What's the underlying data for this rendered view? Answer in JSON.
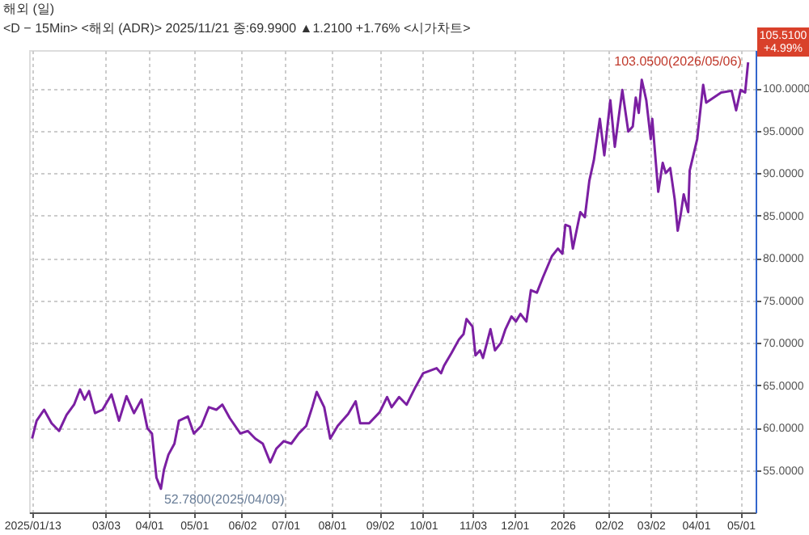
{
  "chart_data": {
    "type": "line",
    "title": "해외 (일)",
    "subtitle": "<D − 15Min> <해외 (ADR)> 2025/11/21 종:69.9900 ▲1.2100 +1.76% <시가차트>",
    "x": [
      "2025-01-13",
      "2025-01-16",
      "2025-01-21",
      "2025-01-26",
      "2025-01-31",
      "2025-02-05",
      "2025-02-10",
      "2025-02-14",
      "2025-02-17",
      "2025-02-20",
      "2025-02-24",
      "2025-03-01",
      "2025-03-07",
      "2025-03-12",
      "2025-03-17",
      "2025-03-22",
      "2025-03-27",
      "2025-03-31",
      "2025-04-03",
      "2025-04-06",
      "2025-04-09",
      "2025-04-11",
      "2025-04-14",
      "2025-04-18",
      "2025-04-21",
      "2025-04-27",
      "2025-05-01",
      "2025-05-06",
      "2025-05-11",
      "2025-05-16",
      "2025-05-20",
      "2025-05-25",
      "2025-06-01",
      "2025-06-06",
      "2025-06-11",
      "2025-06-16",
      "2025-06-21",
      "2025-06-25",
      "2025-06-30",
      "2025-07-05",
      "2025-07-10",
      "2025-07-15",
      "2025-07-19",
      "2025-07-22",
      "2025-07-27",
      "2025-07-31",
      "2025-08-05",
      "2025-08-12",
      "2025-08-17",
      "2025-08-20",
      "2025-08-26",
      "2025-09-02",
      "2025-09-07",
      "2025-09-10",
      "2025-09-15",
      "2025-09-20",
      "2025-09-26",
      "2025-10-01",
      "2025-10-10",
      "2025-10-13",
      "2025-10-15",
      "2025-10-20",
      "2025-10-25",
      "2025-10-28",
      "2025-10-30",
      "2025-11-03",
      "2025-11-05",
      "2025-11-08",
      "2025-11-10",
      "2025-11-15",
      "2025-11-18",
      "2025-11-22",
      "2025-11-25",
      "2025-11-29",
      "2025-12-02",
      "2025-12-05",
      "2025-12-09",
      "2025-12-12",
      "2025-12-16",
      "2025-12-20",
      "2025-12-26",
      "2025-12-30",
      "2026-01-02",
      "2026-01-04",
      "2026-01-07",
      "2026-01-09",
      "2026-01-14",
      "2026-01-17",
      "2026-01-20",
      "2026-01-23",
      "2026-01-27",
      "2026-01-30",
      "2026-02-03",
      "2026-02-06",
      "2026-02-11",
      "2026-02-15",
      "2026-02-18",
      "2026-02-20",
      "2026-02-22",
      "2026-02-24",
      "2026-02-27",
      "2026-03-02",
      "2026-03-03",
      "2026-03-07",
      "2026-03-10",
      "2026-03-12",
      "2026-03-15",
      "2026-03-18",
      "2026-03-20",
      "2026-03-22",
      "2026-03-24",
      "2026-03-27",
      "2026-03-28",
      "2026-04-02",
      "2026-04-06",
      "2026-04-08",
      "2026-04-13",
      "2026-04-18",
      "2026-04-25",
      "2026-04-28",
      "2026-05-01",
      "2026-05-04",
      "2026-05-06"
    ],
    "series": [
      {
        "color": "#7b1fa2",
        "values": [
          58.7,
          60.8,
          62.1,
          60.5,
          59.6,
          61.5,
          62.7,
          64.5,
          63.3,
          64.3,
          61.7,
          62.1,
          63.9,
          60.8,
          63.7,
          61.7,
          63.3,
          59.9,
          59.3,
          54.1,
          52.78,
          55.0,
          56.8,
          58.1,
          60.8,
          61.3,
          59.3,
          60.2,
          62.4,
          62.1,
          62.7,
          61.1,
          59.3,
          59.6,
          58.7,
          58.1,
          55.9,
          57.5,
          58.4,
          58.1,
          59.3,
          60.2,
          62.4,
          64.2,
          62.4,
          58.7,
          60.2,
          61.6,
          63.1,
          60.5,
          60.5,
          61.8,
          63.6,
          62.4,
          63.6,
          62.7,
          64.8,
          66.4,
          67.0,
          66.4,
          67.3,
          68.8,
          70.4,
          71.0,
          72.8,
          71.9,
          68.5,
          69.1,
          68.2,
          71.6,
          69.1,
          70.0,
          71.6,
          73.1,
          72.5,
          73.4,
          72.5,
          76.2,
          75.9,
          77.7,
          80.2,
          81.1,
          80.5,
          83.9,
          83.7,
          81.1,
          85.4,
          84.8,
          89.1,
          91.5,
          96.4,
          92.1,
          98.6,
          93.1,
          99.8,
          94.9,
          95.5,
          98.9,
          97.1,
          101.0,
          98.6,
          94.0,
          96.4,
          87.8,
          91.2,
          90.0,
          90.6,
          86.9,
          83.2,
          85.1,
          87.5,
          85.4,
          90.3,
          94.0,
          100.4,
          98.3,
          98.9,
          99.5,
          99.7,
          97.4,
          99.8,
          99.5,
          103.05
        ]
      }
    ],
    "xlim": [
      "2025-01-11",
      "2026-05-11"
    ],
    "xticks": [
      {
        "value": "2025-01-13",
        "label": "2025/01/13"
      },
      {
        "value": "2025-03-03",
        "label": "03/03"
      },
      {
        "value": "2025-04-01",
        "label": "04/01"
      },
      {
        "value": "2025-05-01",
        "label": "05/01"
      },
      {
        "value": "2025-06-02",
        "label": "06/02"
      },
      {
        "value": "2025-07-01",
        "label": "07/01"
      },
      {
        "value": "2025-08-01",
        "label": "08/01"
      },
      {
        "value": "2025-09-02",
        "label": "09/02"
      },
      {
        "value": "2025-10-01",
        "label": "10/01"
      },
      {
        "value": "2025-11-03",
        "label": "11/03"
      },
      {
        "value": "2025-12-01",
        "label": "12/01"
      },
      {
        "value": "2026-01-02",
        "label": "2026"
      },
      {
        "value": "2026-02-02",
        "label": "02/02"
      },
      {
        "value": "2026-03-02",
        "label": "03/02"
      },
      {
        "value": "2026-04-01",
        "label": "04/01"
      },
      {
        "value": "2026-05-01",
        "label": "05/01"
      }
    ],
    "ylim": [
      50,
      104.5
    ],
    "yticks": [
      {
        "value": 55,
        "label": "55.0000"
      },
      {
        "value": 60,
        "label": "60.0000"
      },
      {
        "value": 65,
        "label": "65.0000"
      },
      {
        "value": 70,
        "label": "70.0000"
      },
      {
        "value": 75,
        "label": "75.0000"
      },
      {
        "value": 80,
        "label": "80.0000"
      },
      {
        "value": 85,
        "label": "85.0000"
      },
      {
        "value": 90,
        "label": "90.0000"
      },
      {
        "value": 95,
        "label": "95.0000"
      },
      {
        "value": 100,
        "label": "100.0000"
      }
    ],
    "grid": true,
    "line_style": "solid",
    "marker": "none",
    "annotations": [
      {
        "text": "52.7800(2025/04/09)",
        "x": "2025-04-09",
        "y": 52.78
      },
      {
        "text": "103.0500(2026/05/06)",
        "x": "2026-05-06",
        "y": 103.05
      },
      "105.5100 +4.99%"
    ]
  }
}
